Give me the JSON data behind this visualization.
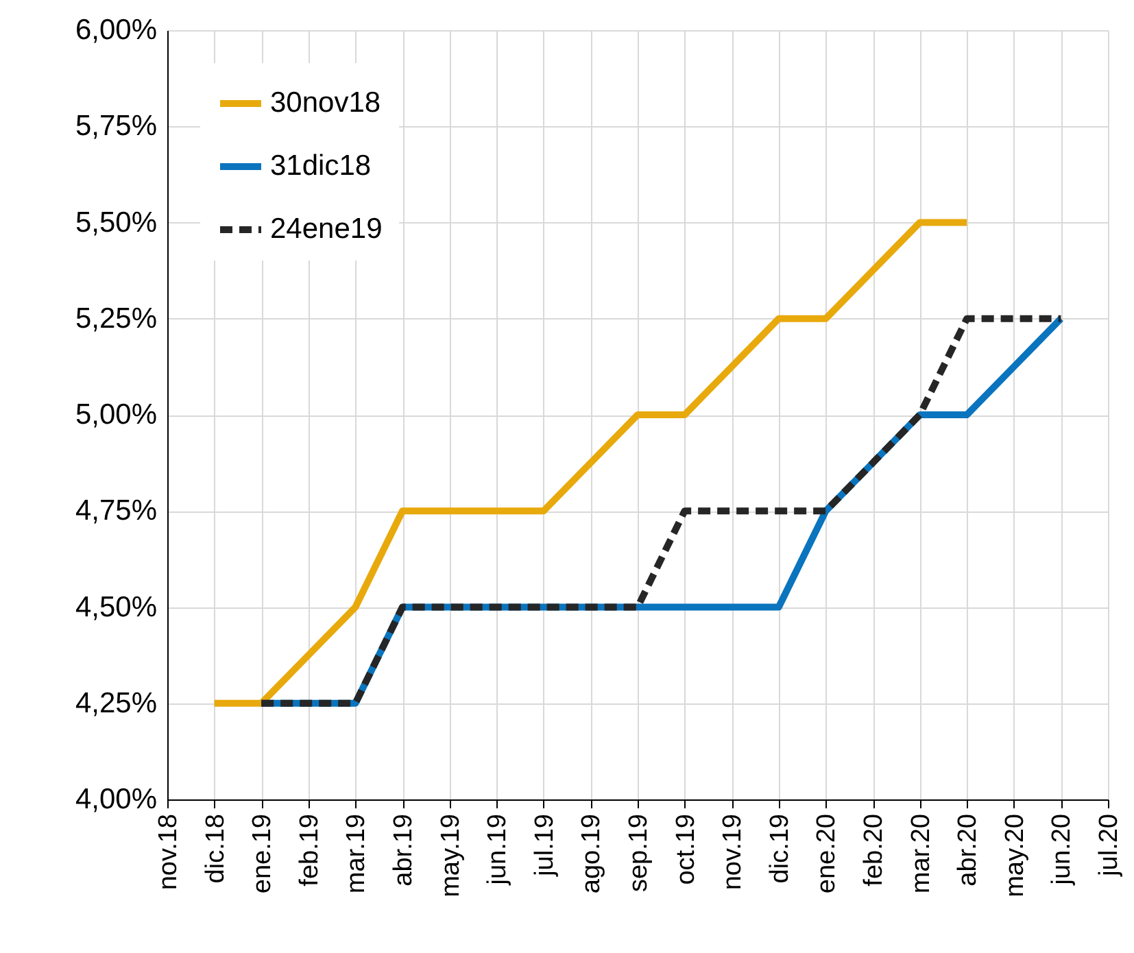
{
  "chart_data": {
    "type": "line",
    "categories": [
      "nov.18",
      "dic.18",
      "ene.19",
      "feb.19",
      "mar.19",
      "abr.19",
      "may.19",
      "jun.19",
      "jul.19",
      "ago.19",
      "sep.19",
      "oct.19",
      "nov.19",
      "dic.19",
      "ene.20",
      "feb.20",
      "mar.20",
      "abr.20",
      "may.20",
      "jun.20",
      "jul.20"
    ],
    "series": [
      {
        "name": "30nov18",
        "color": "#e8a90c",
        "line_style": "solid",
        "values": [
          null,
          4.25,
          4.25,
          4.375,
          4.5,
          4.75,
          4.75,
          4.75,
          4.75,
          4.875,
          5.0,
          5.0,
          5.125,
          5.25,
          5.25,
          5.375,
          5.5,
          5.5,
          null,
          null,
          null
        ]
      },
      {
        "name": "31dic18",
        "color": "#0a74be",
        "line_style": "solid",
        "values": [
          null,
          null,
          4.25,
          4.25,
          4.25,
          4.5,
          4.5,
          4.5,
          4.5,
          4.5,
          4.5,
          4.5,
          4.5,
          4.5,
          4.75,
          4.875,
          5.0,
          5.0,
          5.125,
          5.25,
          null
        ]
      },
      {
        "name": "24ene19",
        "color": "#262626",
        "line_style": "dashed",
        "values": [
          null,
          null,
          4.25,
          4.25,
          4.25,
          4.5,
          4.5,
          4.5,
          4.5,
          4.5,
          4.5,
          4.75,
          4.75,
          4.75,
          4.75,
          4.875,
          5.0,
          5.25,
          5.25,
          5.25,
          null
        ]
      }
    ],
    "ylim": [
      4.0,
      6.0
    ],
    "yticks": [
      {
        "value": 4.0,
        "label": "4,00%"
      },
      {
        "value": 4.25,
        "label": "4,25%"
      },
      {
        "value": 4.5,
        "label": "4,50%"
      },
      {
        "value": 4.75,
        "label": "4,75%"
      },
      {
        "value": 5.0,
        "label": "5,00%"
      },
      {
        "value": 5.25,
        "label": "5,25%"
      },
      {
        "value": 5.5,
        "label": "5,50%"
      },
      {
        "value": 5.75,
        "label": "5,75%"
      },
      {
        "value": 6.0,
        "label": "6,00%"
      }
    ],
    "grid": true,
    "legend": "top left",
    "marker": "none"
  }
}
